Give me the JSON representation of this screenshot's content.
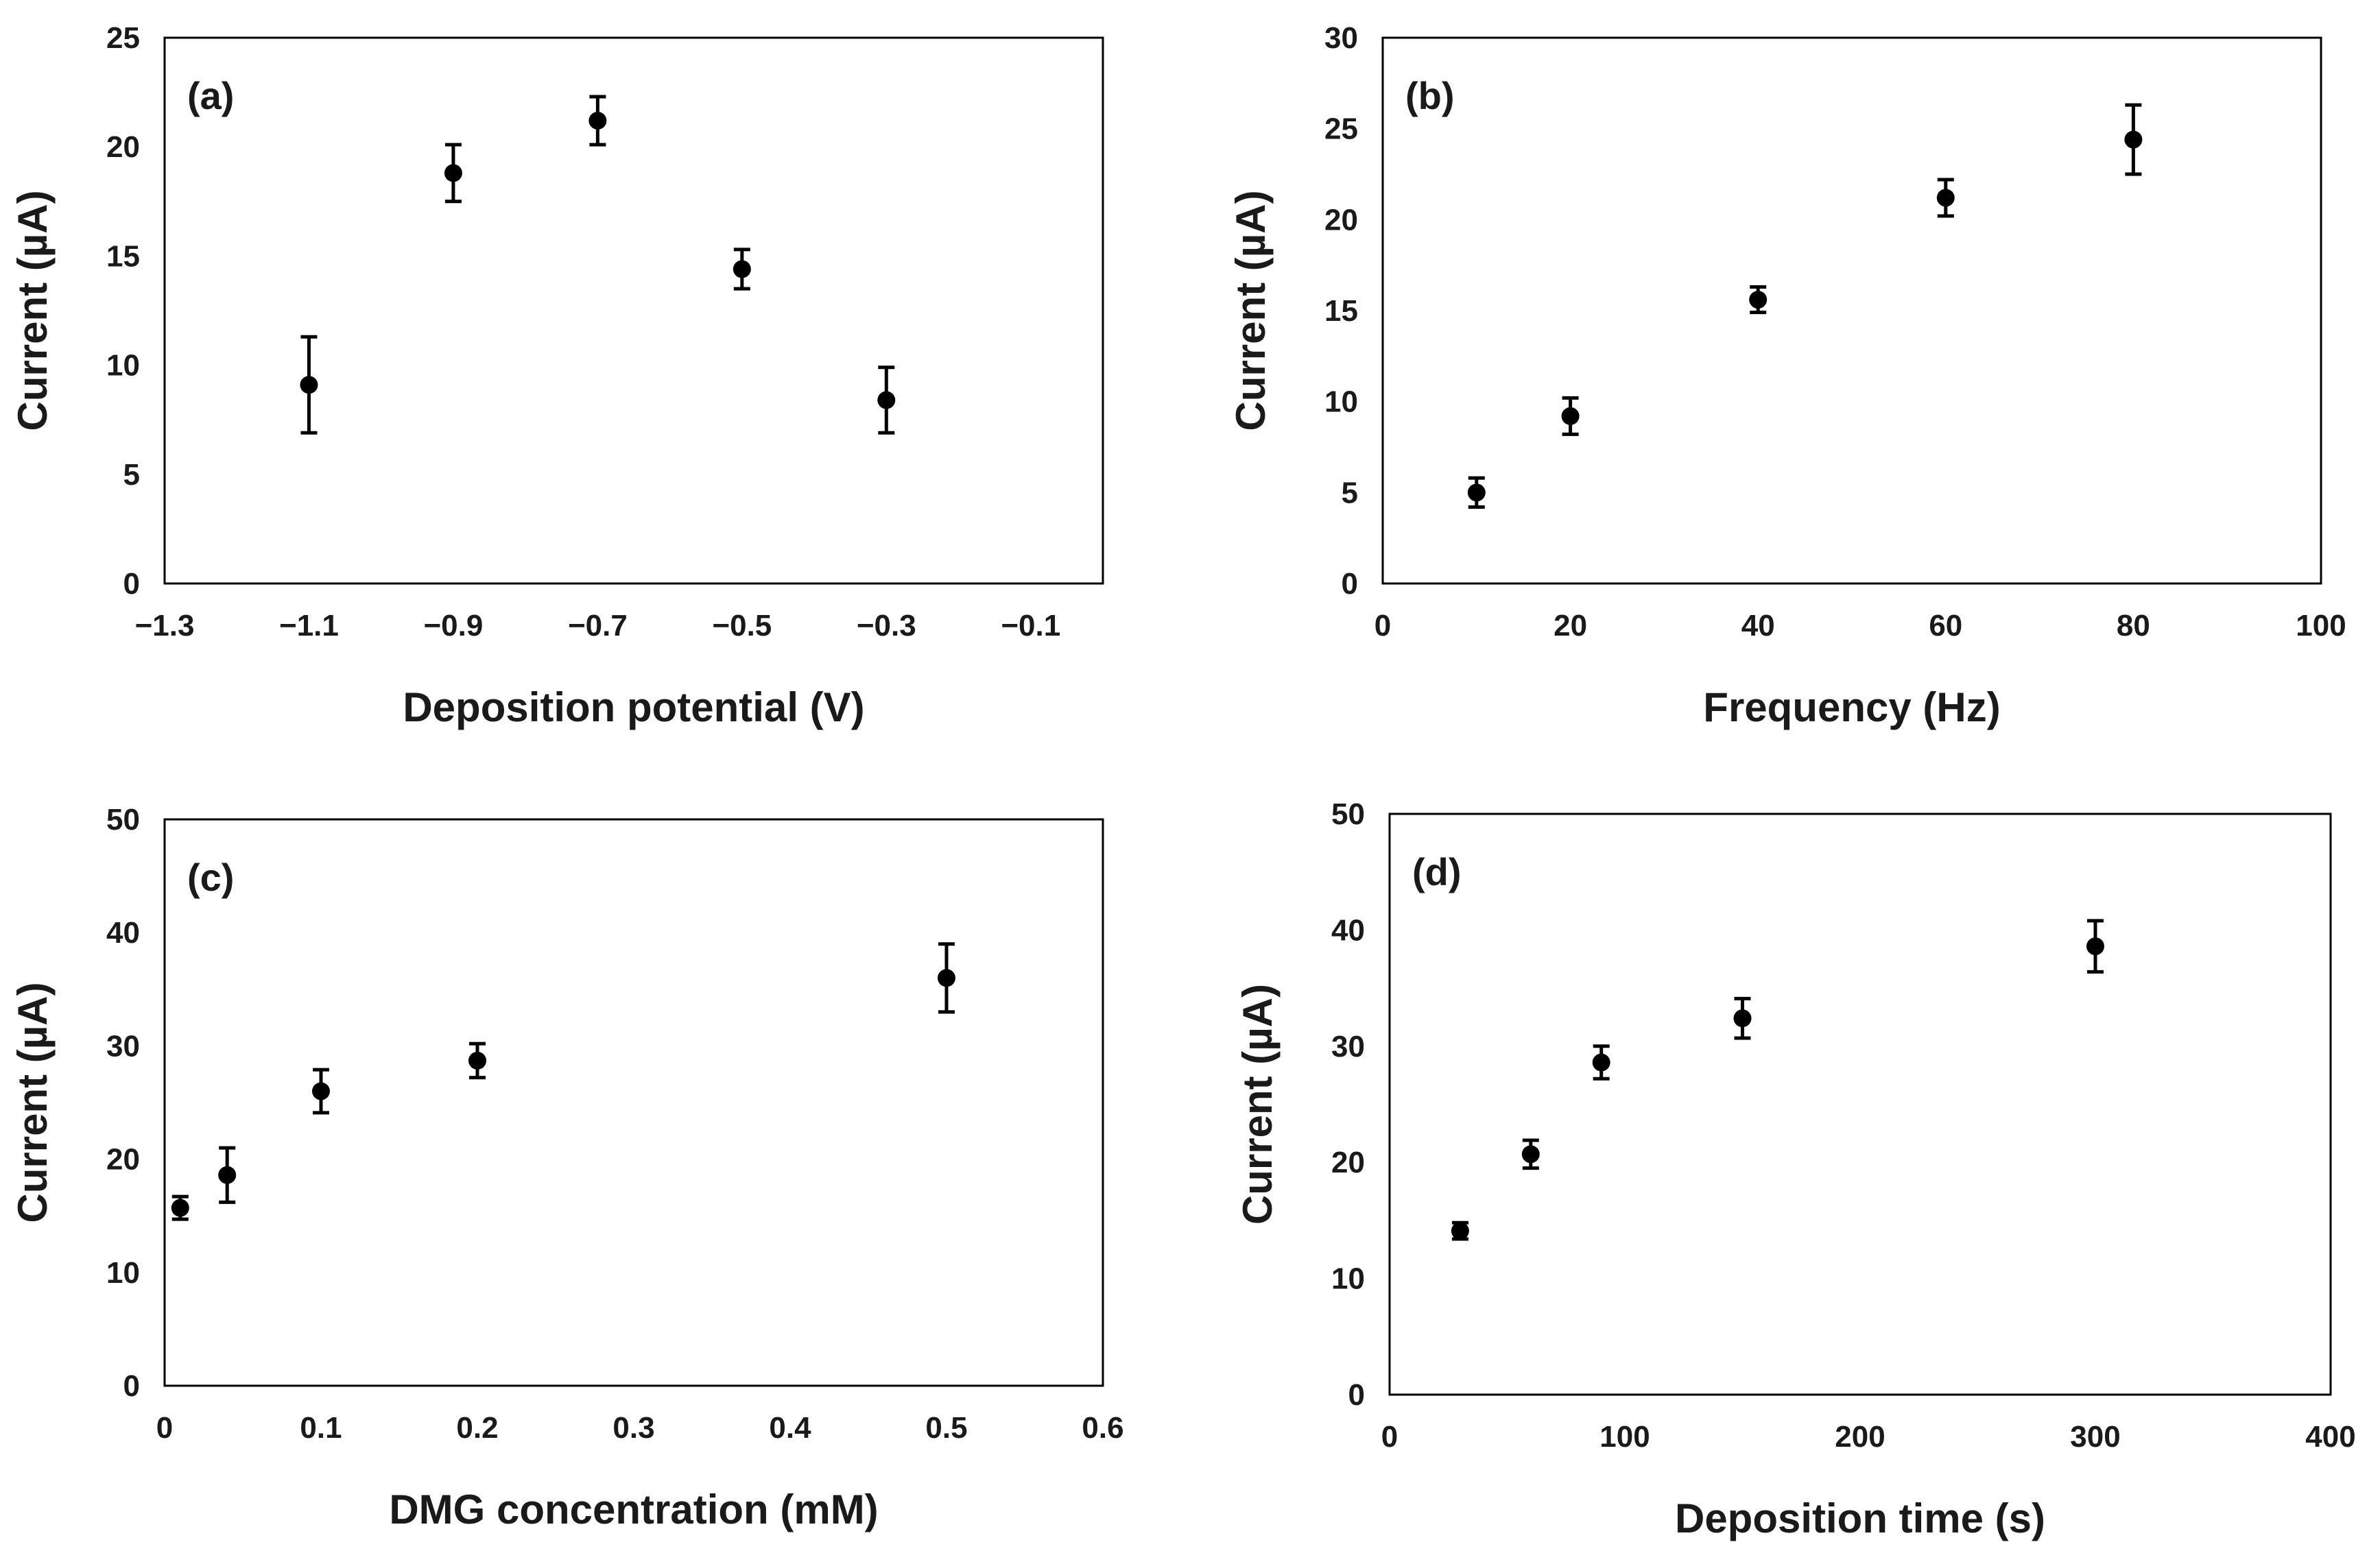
{
  "figure": {
    "background": "#ffffff",
    "marker_color": "#000000"
  },
  "chart_data": [
    {
      "type": "scatter",
      "panel": "(a)",
      "xlabel": "Deposition potential (V)",
      "ylabel": "Current (µA)",
      "xlim": [
        -1.3,
        0
      ],
      "ylim": [
        0,
        25
      ],
      "xticks": [
        -1.3,
        -1.1,
        -0.9,
        -0.7,
        -0.5,
        -0.3,
        -0.1
      ],
      "xtick_labels": [
        "−1.3",
        "−1.1",
        "−0.9",
        "−0.7",
        "−0.5",
        "−0.3",
        "−0.1"
      ],
      "yticks": [
        0,
        5,
        10,
        15,
        20,
        25
      ],
      "ytick_labels": [
        "0",
        "5",
        "10",
        "15",
        "20",
        "25"
      ],
      "grid": false,
      "x": [
        -1.1,
        -0.9,
        -0.7,
        -0.5,
        -0.3
      ],
      "y": [
        9.1,
        18.8,
        21.2,
        14.4,
        8.4
      ],
      "error": [
        2.2,
        1.3,
        1.1,
        0.9,
        1.5
      ]
    },
    {
      "type": "scatter",
      "panel": "(b)",
      "xlabel": "Frequency (Hz)",
      "ylabel": "Current (µA)",
      "xlim": [
        0,
        100
      ],
      "ylim": [
        0,
        30
      ],
      "xticks": [
        0,
        20,
        40,
        60,
        80,
        100
      ],
      "xtick_labels": [
        "0",
        "20",
        "40",
        "60",
        "80",
        "100"
      ],
      "yticks": [
        0,
        5,
        10,
        15,
        20,
        25,
        30
      ],
      "ytick_labels": [
        "0",
        "5",
        "10",
        "15",
        "20",
        "25",
        "30"
      ],
      "grid": false,
      "x": [
        10,
        20,
        40,
        60,
        80
      ],
      "y": [
        5.0,
        9.2,
        15.6,
        21.2,
        24.4
      ],
      "error": [
        0.8,
        1.0,
        0.7,
        1.0,
        1.9
      ]
    },
    {
      "type": "scatter",
      "panel": "(c)",
      "xlabel": "DMG concentration (mM)",
      "ylabel": "Current (µA)",
      "xlim": [
        0,
        0.6
      ],
      "ylim": [
        0,
        50
      ],
      "xticks": [
        0,
        0.1,
        0.2,
        0.3,
        0.4,
        0.5,
        0.6
      ],
      "xtick_labels": [
        "0",
        "0.1",
        "0.2",
        "0.3",
        "0.4",
        "0.5",
        "0.6"
      ],
      "yticks": [
        0,
        10,
        20,
        30,
        40,
        50
      ],
      "ytick_labels": [
        "0",
        "10",
        "20",
        "30",
        "40",
        "50"
      ],
      "grid": false,
      "x": [
        0.01,
        0.04,
        0.1,
        0.2,
        0.5
      ],
      "y": [
        15.7,
        18.6,
        26.0,
        28.7,
        36.0
      ],
      "error": [
        1.0,
        2.4,
        1.9,
        1.5,
        3.0
      ]
    },
    {
      "type": "scatter",
      "panel": "(d)",
      "xlabel": "Deposition time (s)",
      "ylabel": "Current (µA)",
      "xlim": [
        0,
        400
      ],
      "ylim": [
        0,
        50
      ],
      "xticks": [
        0,
        100,
        200,
        300,
        400
      ],
      "xtick_labels": [
        "0",
        "100",
        "200",
        "300",
        "400"
      ],
      "yticks": [
        0,
        10,
        20,
        30,
        40,
        50
      ],
      "ytick_labels": [
        "0",
        "10",
        "20",
        "30",
        "40",
        "50"
      ],
      "grid": false,
      "x": [
        30,
        60,
        90,
        150,
        300
      ],
      "y": [
        14.1,
        20.7,
        28.6,
        32.4,
        38.6
      ],
      "error": [
        0.7,
        1.2,
        1.4,
        1.7,
        2.2
      ]
    }
  ]
}
